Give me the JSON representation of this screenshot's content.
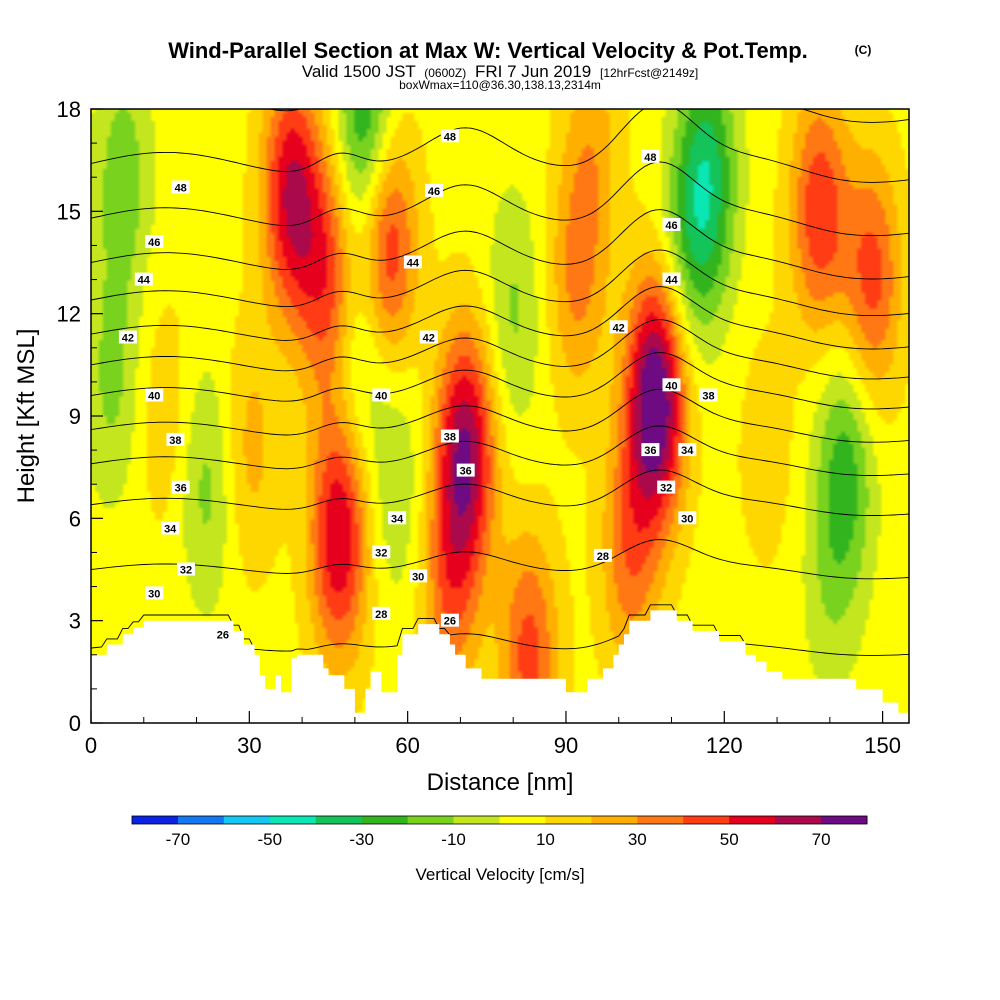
{
  "title": "Wind-Parallel Section at Max W: Vertical Velocity & Pot.Temp.",
  "title_mark": "(C)",
  "subtitle_main": "Valid 1500 JST",
  "subtitle_utc": "(0600Z)",
  "subtitle_date": "FRI 7 Jun 2019",
  "subtitle_fcst": "[12hrFcst@2149z]",
  "subtitle_box": "boxWmax=110@36.30,138.13,2314m",
  "chart_data": {
    "type": "heatmap",
    "xlabel": "Distance [nm]",
    "ylabel": "Height [Kft MSL]",
    "xlim": [
      0,
      155
    ],
    "ylim": [
      0,
      18
    ],
    "x_ticks": [
      "0",
      "30",
      "60",
      "90",
      "120",
      "150"
    ],
    "y_ticks": [
      "0",
      "3",
      "6",
      "9",
      "12",
      "15",
      "18"
    ],
    "colorbar": {
      "label": "Vertical Velocity [cm/s]",
      "tick_labels": [
        "-70",
        "-50",
        "-30",
        "-10",
        "10",
        "30",
        "50",
        "70"
      ],
      "levels": [
        -80,
        -70,
        -60,
        -50,
        -40,
        -30,
        -20,
        -10,
        0,
        10,
        20,
        30,
        40,
        50,
        60,
        70,
        80
      ],
      "colors": [
        "#0a22e6",
        "#1478f0",
        "#14c8f5",
        "#0ae6b4",
        "#14c35a",
        "#32b41e",
        "#78d21e",
        "#c3e61e",
        "#ffff00",
        "#ffd700",
        "#ffaf00",
        "#ff7814",
        "#ff3c14",
        "#e6001e",
        "#aa0a4b",
        "#6e0a82"
      ]
    },
    "vertical_velocity_features": [
      {
        "x": 4,
        "z": 10,
        "w": -18
      },
      {
        "x": 14,
        "z": 9,
        "w": 12
      },
      {
        "x": 22,
        "z": 7,
        "w": -20
      },
      {
        "x": 30,
        "z": 8,
        "w": 18
      },
      {
        "x": 38,
        "z": 15.5,
        "w": 55
      },
      {
        "x": 47,
        "z": 5.5,
        "w": 55
      },
      {
        "x": 45,
        "z": 13,
        "w": 40
      },
      {
        "x": 51,
        "z": 11,
        "w": -22
      },
      {
        "x": 56,
        "z": 14,
        "w": 48
      },
      {
        "x": 52,
        "z": 17.5,
        "w": -40
      },
      {
        "x": 58,
        "z": 7,
        "w": -15
      },
      {
        "x": 71,
        "z": 8,
        "w": 62
      },
      {
        "x": 68,
        "z": 4,
        "w": 30
      },
      {
        "x": 80,
        "z": 12,
        "w": -18
      },
      {
        "x": 83,
        "z": 2,
        "w": 38
      },
      {
        "x": 92,
        "z": 13,
        "w": 25
      },
      {
        "x": 107,
        "z": 9.5,
        "w": 78
      },
      {
        "x": 102,
        "z": 5,
        "w": 30
      },
      {
        "x": 113,
        "z": 14,
        "w": -22
      },
      {
        "x": 117,
        "z": 16,
        "w": -38
      },
      {
        "x": 138,
        "z": 15,
        "w": 42
      },
      {
        "x": 148,
        "z": 13,
        "w": 38
      },
      {
        "x": 143,
        "z": 7.5,
        "w": -30
      },
      {
        "x": 140,
        "z": 4,
        "w": -12
      },
      {
        "x": 128,
        "z": 8,
        "w": 10
      },
      {
        "x": 6,
        "z": 16,
        "w": -22
      },
      {
        "x": 95,
        "z": 17,
        "w": 18
      }
    ],
    "potential_temperature_contours": [
      {
        "value": 26,
        "base_height": 2.2
      },
      {
        "value": 28,
        "base_height": 4.5
      },
      {
        "value": 30,
        "base_height": 6.4
      },
      {
        "value": 32,
        "base_height": 7.6
      },
      {
        "value": 34,
        "base_height": 8.6
      },
      {
        "value": 36,
        "base_height": 9.6
      },
      {
        "value": 38,
        "base_height": 10.5
      },
      {
        "value": 40,
        "base_height": 11.4
      },
      {
        "value": 42,
        "base_height": 12.4
      },
      {
        "value": 44,
        "base_height": 13.5
      },
      {
        "value": 46,
        "base_height": 14.8
      },
      {
        "value": 48,
        "base_height": 16.4
      }
    ],
    "contour_labels": [
      {
        "text": "48",
        "x": 17,
        "z": 15.7
      },
      {
        "text": "46",
        "x": 12,
        "z": 14.1
      },
      {
        "text": "44",
        "x": 10,
        "z": 13.0
      },
      {
        "text": "42",
        "x": 7,
        "z": 11.3
      },
      {
        "text": "40",
        "x": 12,
        "z": 9.6
      },
      {
        "text": "38",
        "x": 16,
        "z": 8.3
      },
      {
        "text": "36",
        "x": 17,
        "z": 6.9
      },
      {
        "text": "34",
        "x": 15,
        "z": 5.7
      },
      {
        "text": "32",
        "x": 18,
        "z": 4.5
      },
      {
        "text": "30",
        "x": 12,
        "z": 3.8
      },
      {
        "text": "26",
        "x": 25,
        "z": 2.6
      },
      {
        "text": "48",
        "x": 68,
        "z": 17.2
      },
      {
        "text": "46",
        "x": 65,
        "z": 15.6
      },
      {
        "text": "44",
        "x": 61,
        "z": 13.5
      },
      {
        "text": "42",
        "x": 64,
        "z": 11.3
      },
      {
        "text": "40",
        "x": 55,
        "z": 9.6
      },
      {
        "text": "38",
        "x": 68,
        "z": 8.4
      },
      {
        "text": "36",
        "x": 71,
        "z": 7.4
      },
      {
        "text": "34",
        "x": 58,
        "z": 6.0
      },
      {
        "text": "32",
        "x": 55,
        "z": 5.0
      },
      {
        "text": "30",
        "x": 62,
        "z": 4.3
      },
      {
        "text": "28",
        "x": 55,
        "z": 3.2
      },
      {
        "text": "26",
        "x": 68,
        "z": 3.0
      },
      {
        "text": "48",
        "x": 106,
        "z": 16.6
      },
      {
        "text": "46",
        "x": 110,
        "z": 14.6
      },
      {
        "text": "44",
        "x": 110,
        "z": 13.0
      },
      {
        "text": "42",
        "x": 100,
        "z": 11.6
      },
      {
        "text": "40",
        "x": 110,
        "z": 9.9
      },
      {
        "text": "38",
        "x": 117,
        "z": 9.6
      },
      {
        "text": "36",
        "x": 106,
        "z": 8.0
      },
      {
        "text": "34",
        "x": 113,
        "z": 8.0
      },
      {
        "text": "32",
        "x": 109,
        "z": 6.9
      },
      {
        "text": "30",
        "x": 113,
        "z": 6.0
      },
      {
        "text": "28",
        "x": 97,
        "z": 4.9
      }
    ],
    "terrain_nm_kft": [
      [
        0,
        2.0
      ],
      [
        3,
        2.0
      ],
      [
        3,
        2.3
      ],
      [
        6,
        2.3
      ],
      [
        6,
        2.6
      ],
      [
        8,
        2.6
      ],
      [
        8,
        2.8
      ],
      [
        10,
        2.8
      ],
      [
        10,
        3.0
      ],
      [
        27,
        3.0
      ],
      [
        27,
        2.7
      ],
      [
        29,
        2.7
      ],
      [
        29,
        2.3
      ],
      [
        31,
        2.3
      ],
      [
        31,
        2.0
      ],
      [
        32,
        2.0
      ],
      [
        32,
        1.4
      ],
      [
        33,
        1.4
      ],
      [
        33,
        1.0
      ],
      [
        35,
        1.0
      ],
      [
        35,
        1.4
      ],
      [
        36,
        1.4
      ],
      [
        36,
        0.9
      ],
      [
        38,
        0.9
      ],
      [
        38,
        1.9
      ],
      [
        39,
        1.9
      ],
      [
        39,
        2.0
      ],
      [
        44,
        2.0
      ],
      [
        44,
        1.6
      ],
      [
        45,
        1.6
      ],
      [
        45,
        1.4
      ],
      [
        48,
        1.4
      ],
      [
        48,
        1.0
      ],
      [
        50,
        1.0
      ],
      [
        50,
        0.3
      ],
      [
        52,
        0.3
      ],
      [
        52,
        1.0
      ],
      [
        53,
        1.0
      ],
      [
        53,
        1.5
      ],
      [
        55,
        1.5
      ],
      [
        55,
        0.9
      ],
      [
        58,
        0.9
      ],
      [
        58,
        2.0
      ],
      [
        59,
        2.0
      ],
      [
        59,
        2.6
      ],
      [
        62,
        2.6
      ],
      [
        62,
        2.9
      ],
      [
        66,
        2.9
      ],
      [
        66,
        2.6
      ],
      [
        68,
        2.6
      ],
      [
        68,
        2.3
      ],
      [
        69,
        2.3
      ],
      [
        69,
        2.0
      ],
      [
        71,
        2.0
      ],
      [
        71,
        1.6
      ],
      [
        74,
        1.6
      ],
      [
        74,
        1.3
      ],
      [
        90,
        1.3
      ],
      [
        90,
        0.9
      ],
      [
        94,
        0.9
      ],
      [
        94,
        1.3
      ],
      [
        97,
        1.3
      ],
      [
        97,
        1.6
      ],
      [
        99,
        1.6
      ],
      [
        99,
        2.0
      ],
      [
        100,
        2.0
      ],
      [
        100,
        2.3
      ],
      [
        101,
        2.3
      ],
      [
        101,
        2.6
      ],
      [
        102,
        2.6
      ],
      [
        102,
        3.0
      ],
      [
        106,
        3.0
      ],
      [
        106,
        3.3
      ],
      [
        111,
        3.3
      ],
      [
        111,
        3.0
      ],
      [
        114,
        3.0
      ],
      [
        114,
        2.7
      ],
      [
        119,
        2.7
      ],
      [
        119,
        2.4
      ],
      [
        124,
        2.4
      ],
      [
        124,
        2.0
      ],
      [
        126,
        2.0
      ],
      [
        126,
        1.8
      ],
      [
        128,
        1.8
      ],
      [
        128,
        1.5
      ],
      [
        131,
        1.5
      ],
      [
        131,
        1.3
      ],
      [
        145,
        1.3
      ],
      [
        145,
        1.0
      ],
      [
        150,
        1.0
      ],
      [
        150,
        0.6
      ],
      [
        153,
        0.6
      ],
      [
        153,
        0.3
      ],
      [
        155,
        0.3
      ]
    ]
  }
}
